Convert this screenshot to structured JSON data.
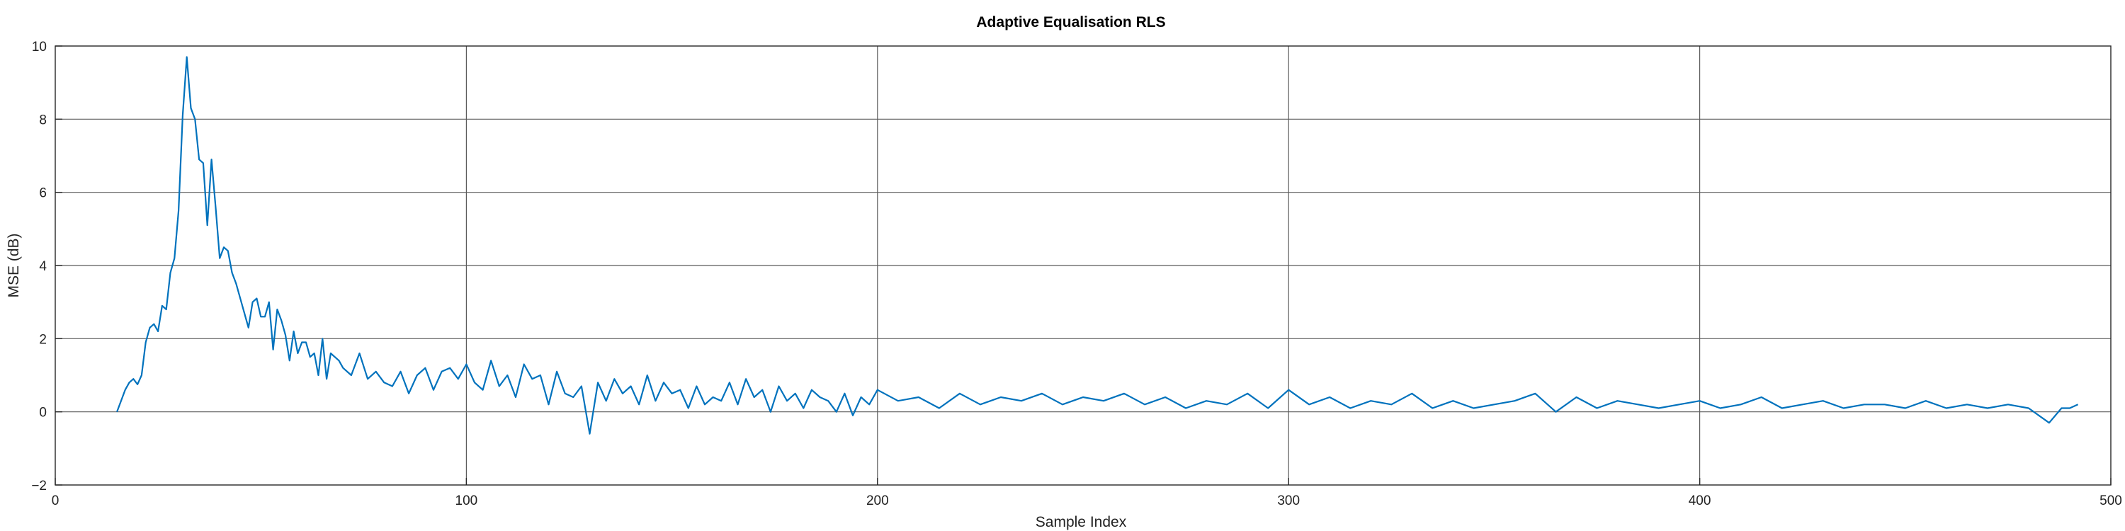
{
  "chart_data": {
    "type": "line",
    "title": "Adaptive Equalisation RLS",
    "xlabel": "Sample Index",
    "ylabel": "MSE (dB)",
    "xlim": [
      0,
      500
    ],
    "ylim": [
      -2,
      10
    ],
    "xticks": [
      0,
      100,
      200,
      300,
      400,
      500
    ],
    "yticks": [
      -2,
      0,
      2,
      4,
      6,
      8,
      10
    ],
    "xtick_labels": [
      "0",
      "100",
      "200",
      "300",
      "400",
      "500"
    ],
    "ytick_labels": [
      "−2",
      "0",
      "2",
      "4",
      "6",
      "8",
      "10"
    ],
    "grid": true,
    "line_color": "#0072BD",
    "series": [
      {
        "x": [
          15,
          16,
          17,
          18,
          19,
          20,
          21,
          22,
          23,
          24,
          25,
          26,
          27,
          28,
          29,
          30,
          31,
          32,
          33,
          34,
          35,
          36,
          37,
          38,
          39,
          40,
          41,
          42,
          43,
          44,
          45,
          46,
          47,
          48,
          49,
          50,
          51,
          52,
          53,
          54,
          55,
          56,
          57,
          58,
          59,
          60,
          61,
          62,
          63,
          64,
          65,
          66,
          67,
          68,
          69,
          70,
          72,
          74,
          76,
          78,
          80,
          82,
          84,
          86,
          88,
          90,
          92,
          94,
          96,
          98,
          100,
          102,
          104,
          106,
          108,
          110,
          112,
          114,
          116,
          118,
          120,
          122,
          124,
          126,
          128,
          130,
          132,
          134,
          136,
          138,
          140,
          142,
          144,
          146,
          148,
          150,
          152,
          154,
          156,
          158,
          160,
          162,
          164,
          166,
          168,
          170,
          172,
          174,
          176,
          178,
          180,
          182,
          184,
          186,
          188,
          190,
          192,
          194,
          196,
          198,
          200,
          205,
          210,
          215,
          220,
          225,
          230,
          235,
          240,
          245,
          250,
          255,
          260,
          265,
          270,
          275,
          280,
          285,
          290,
          295,
          300,
          305,
          310,
          315,
          320,
          325,
          330,
          335,
          340,
          345,
          350,
          355,
          360,
          365,
          370,
          375,
          380,
          385,
          390,
          395,
          400,
          405,
          410,
          415,
          420,
          425,
          430,
          435,
          440,
          445,
          450,
          455,
          460,
          465,
          470,
          475,
          480,
          485,
          488,
          490,
          492
        ],
        "y": [
          0.0,
          0.3,
          0.6,
          0.8,
          0.9,
          0.75,
          1.0,
          1.9,
          2.3,
          2.4,
          2.2,
          2.9,
          2.8,
          3.8,
          4.2,
          5.5,
          8.1,
          9.7,
          8.3,
          8.0,
          6.9,
          6.8,
          5.1,
          6.9,
          5.6,
          4.2,
          4.5,
          4.4,
          3.8,
          3.5,
          3.1,
          2.7,
          2.3,
          3.0,
          3.1,
          2.6,
          2.6,
          3.0,
          1.7,
          2.8,
          2.5,
          2.1,
          1.4,
          2.2,
          1.6,
          1.9,
          1.9,
          1.5,
          1.6,
          1.0,
          2.0,
          0.9,
          1.6,
          1.5,
          1.4,
          1.2,
          1.0,
          1.6,
          0.9,
          1.1,
          0.8,
          0.7,
          1.1,
          0.5,
          1.0,
          1.2,
          0.6,
          1.1,
          1.2,
          0.9,
          1.3,
          0.8,
          0.6,
          1.4,
          0.7,
          1.0,
          0.4,
          1.3,
          0.9,
          1.0,
          0.2,
          1.1,
          0.5,
          0.4,
          0.7,
          -0.6,
          0.8,
          0.3,
          0.9,
          0.5,
          0.7,
          0.2,
          1.0,
          0.3,
          0.8,
          0.5,
          0.6,
          0.1,
          0.7,
          0.2,
          0.4,
          0.3,
          0.8,
          0.2,
          0.9,
          0.4,
          0.6,
          0.0,
          0.7,
          0.3,
          0.5,
          0.1,
          0.6,
          0.4,
          0.3,
          0.0,
          0.5,
          -0.1,
          0.4,
          0.2,
          0.6,
          0.3,
          0.4,
          0.1,
          0.5,
          0.2,
          0.4,
          0.3,
          0.5,
          0.2,
          0.4,
          0.3,
          0.5,
          0.2,
          0.4,
          0.1,
          0.3,
          0.2,
          0.5,
          0.1,
          0.6,
          0.2,
          0.4,
          0.1,
          0.3,
          0.2,
          0.5,
          0.1,
          0.3,
          0.1,
          0.2,
          0.3,
          0.5,
          0.0,
          0.4,
          0.1,
          0.3,
          0.2,
          0.1,
          0.2,
          0.3,
          0.1,
          0.2,
          0.4,
          0.1,
          0.2,
          0.3,
          0.1,
          0.2,
          0.2,
          0.1,
          0.3,
          0.1,
          0.2,
          0.1,
          0.2,
          0.1,
          -0.3,
          0.1,
          0.1,
          0.2
        ]
      }
    ]
  }
}
